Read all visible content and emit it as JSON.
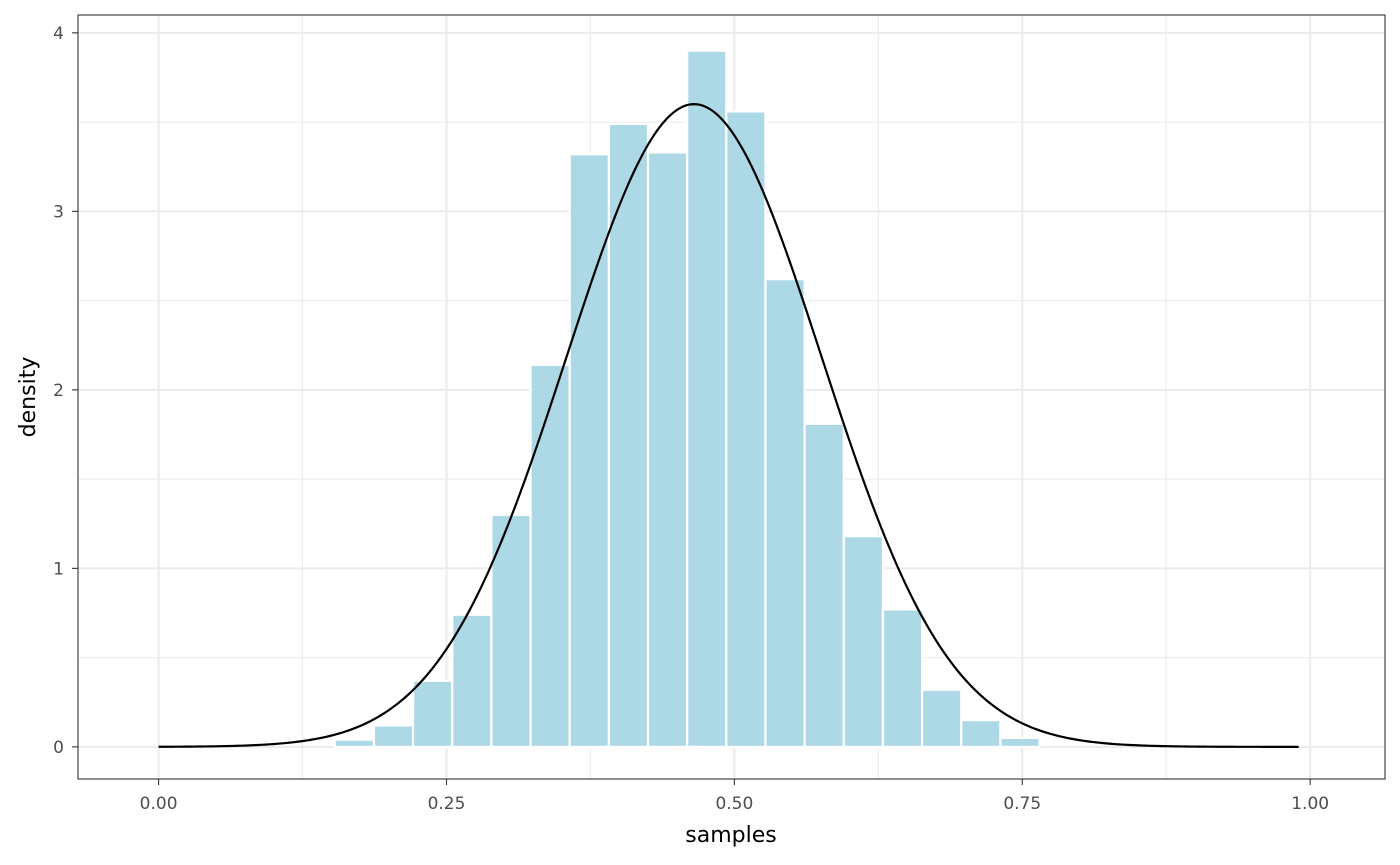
{
  "chart_data": {
    "type": "bar",
    "subtype": "histogram-with-density",
    "title": "",
    "xlabel": "samples",
    "ylabel": "density",
    "xlim": [
      -0.07,
      1.065
    ],
    "ylim": [
      -0.18,
      4.1
    ],
    "x_ticks": [
      0.0,
      0.25,
      0.5,
      0.75,
      1.0
    ],
    "x_tick_labels": [
      "0.00",
      "0.25",
      "0.50",
      "0.75",
      "1.00"
    ],
    "y_ticks": [
      0,
      1,
      2,
      3,
      4
    ],
    "y_tick_labels": [
      "0",
      "1",
      "2",
      "3",
      "4"
    ],
    "grid": true,
    "legend": "none",
    "bin_width": 0.034,
    "bin_starts": [
      0.153,
      0.187,
      0.221,
      0.255,
      0.289,
      0.323,
      0.357,
      0.391,
      0.425,
      0.459,
      0.493,
      0.527,
      0.561,
      0.595,
      0.629,
      0.663,
      0.697,
      0.731
    ],
    "bin_values": [
      0.04,
      0.12,
      0.37,
      0.74,
      1.3,
      2.14,
      3.32,
      3.49,
      3.33,
      3.9,
      3.56,
      2.62,
      1.81,
      1.18,
      0.77,
      0.32,
      0.15,
      0.05
    ],
    "density_curve": {
      "x_range": [
        0.0,
        0.99
      ],
      "mean": 0.465,
      "sd": 0.1108
    },
    "colors": {
      "bars": "#add8e6",
      "bar_outline": "#ffffff",
      "curve": "#000000",
      "grid": "#ebebeb",
      "panel_border": "#333333"
    }
  }
}
